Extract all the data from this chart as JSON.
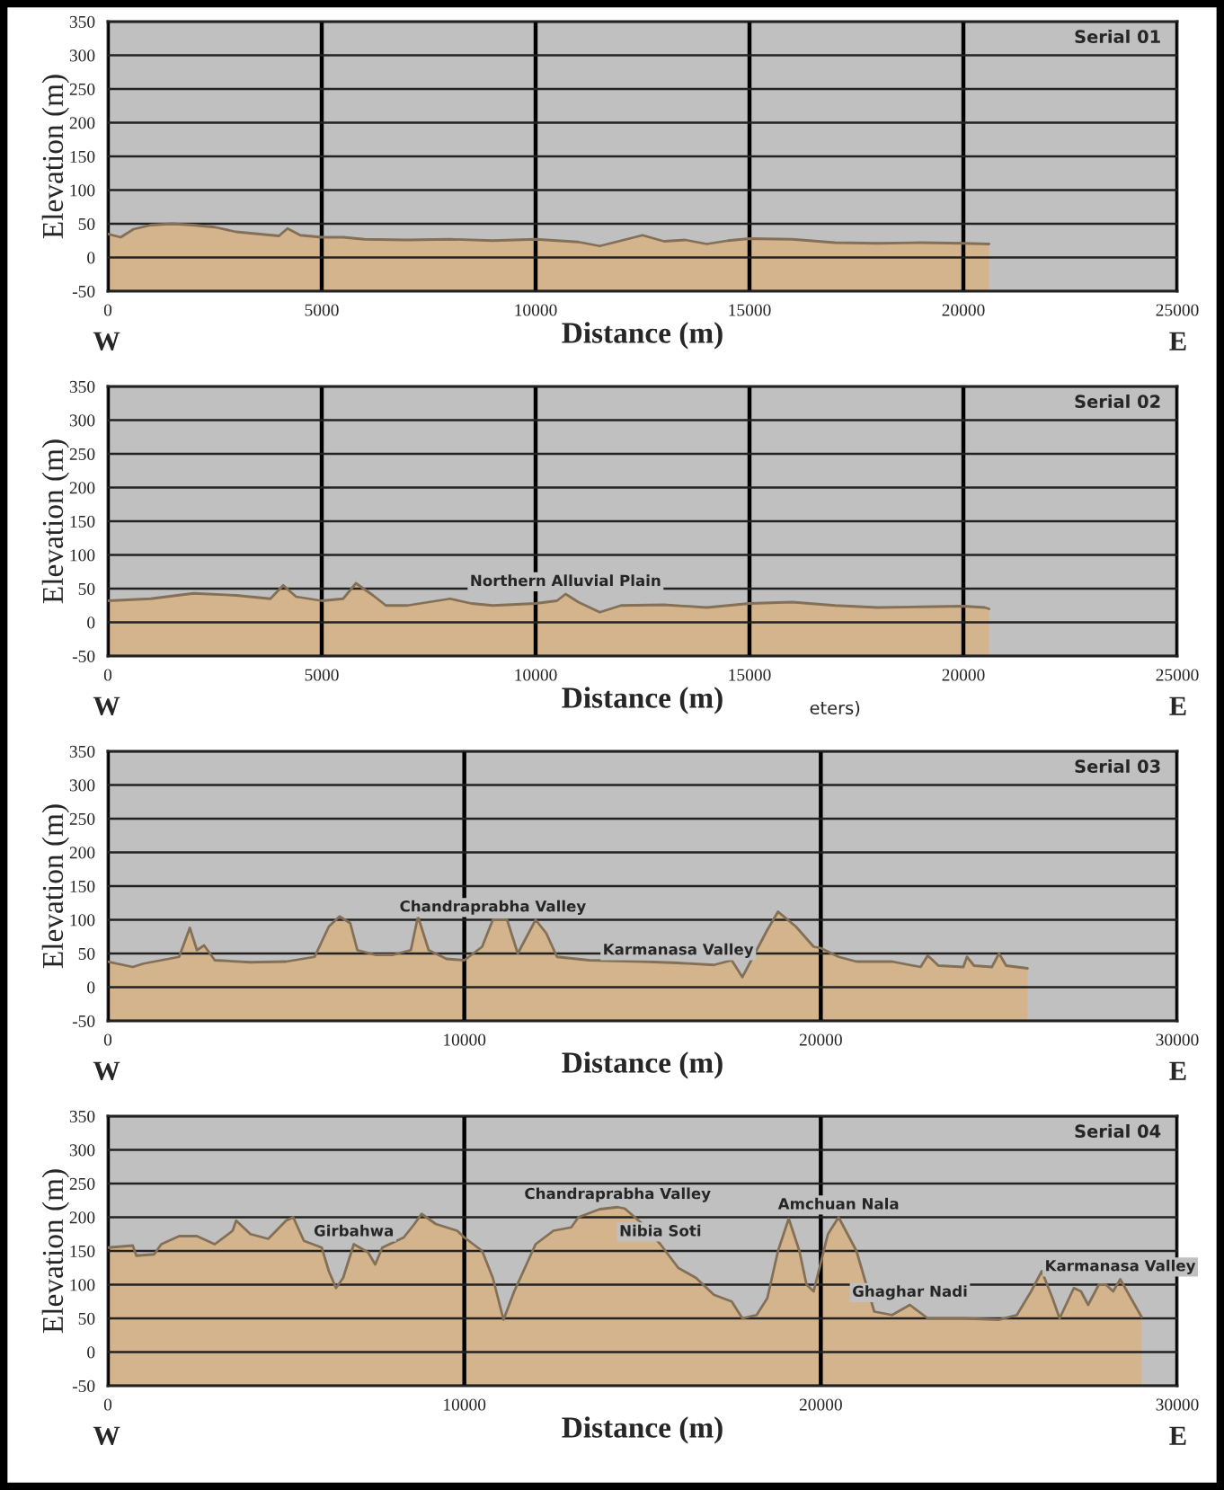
{
  "chart_data": [
    {
      "type": "area",
      "title": "Serial 01",
      "xlabel": "Distance (m)",
      "ylabel": "Elevation (m)",
      "xlim": [
        0,
        25000
      ],
      "ylim": [
        -50,
        350
      ],
      "xticks": [
        0,
        5000,
        10000,
        15000,
        20000,
        25000
      ],
      "yticks": [
        -50,
        0,
        50,
        100,
        150,
        200,
        250,
        300,
        350
      ],
      "grid": true,
      "legend": false,
      "annotations": [
        "W",
        "E"
      ],
      "series": [
        {
          "color": "#d4b48c",
          "x": [
            0,
            300,
            600,
            1000,
            1500,
            2000,
            2500,
            3000,
            3500,
            4000,
            4200,
            4500,
            5000,
            5500,
            6000,
            7000,
            8000,
            9000,
            10000,
            11000,
            11500,
            12000,
            12500,
            13000,
            13500,
            14000,
            14500,
            15000,
            16000,
            17000,
            18000,
            19000,
            20000,
            20600
          ],
          "values": [
            35,
            30,
            42,
            48,
            50,
            48,
            45,
            38,
            35,
            32,
            43,
            33,
            30,
            30,
            27,
            26,
            27,
            25,
            27,
            23,
            17,
            25,
            33,
            24,
            26,
            20,
            25,
            28,
            27,
            22,
            21,
            22,
            21,
            20
          ]
        }
      ]
    },
    {
      "type": "area",
      "title": "Serial 02",
      "xlabel": "Distance (m)",
      "ylabel": "Elevation (m)",
      "xlim": [
        0,
        25000
      ],
      "ylim": [
        -50,
        350
      ],
      "xticks": [
        0,
        5000,
        10000,
        15000,
        20000,
        25000
      ],
      "yticks": [
        -50,
        0,
        50,
        100,
        150,
        200,
        250,
        300,
        350
      ],
      "grid": true,
      "legend": false,
      "annotations": [
        "W",
        "E",
        "eters)",
        {
          "text": "Northern Alluvial Plain",
          "x": 10700,
          "y": 42
        }
      ],
      "series": [
        {
          "color": "#d4b48c",
          "x": [
            0,
            1000,
            2000,
            3000,
            3800,
            4100,
            4400,
            5000,
            5500,
            5800,
            6200,
            6500,
            7000,
            8000,
            8500,
            9000,
            10000,
            10500,
            10700,
            11000,
            11500,
            12000,
            13000,
            14000,
            15000,
            16000,
            17000,
            18000,
            19000,
            20000,
            20500,
            20600
          ],
          "values": [
            32,
            35,
            43,
            40,
            35,
            55,
            38,
            32,
            35,
            58,
            40,
            25,
            25,
            35,
            28,
            25,
            28,
            32,
            42,
            30,
            15,
            25,
            26,
            22,
            28,
            30,
            25,
            22,
            23,
            24,
            22,
            20
          ]
        }
      ]
    },
    {
      "type": "area",
      "title": "Serial 03",
      "xlabel": "Distance (m)",
      "ylabel": "Elevation (m)",
      "xlim": [
        0,
        30000
      ],
      "ylim": [
        -50,
        350
      ],
      "xticks": [
        0,
        10000,
        20000,
        30000
      ],
      "yticks": [
        -50,
        0,
        50,
        100,
        150,
        200,
        250,
        300,
        350
      ],
      "grid": true,
      "legend": false,
      "annotations": [
        "W",
        "E",
        {
          "text": "Chandraprabha Valley",
          "x": 10800,
          "y": 100
        },
        {
          "text": "Karmanasa Valley",
          "x": 16000,
          "y": 36
        }
      ],
      "series": [
        {
          "color": "#d4b48c",
          "x": [
            0,
            700,
            1000,
            2000,
            2300,
            2500,
            2700,
            3000,
            4000,
            5000,
            5800,
            6200,
            6500,
            6800,
            7000,
            7500,
            8000,
            8500,
            8700,
            9000,
            9500,
            10000,
            10500,
            10800,
            11200,
            11500,
            11800,
            12000,
            12300,
            12600,
            13500,
            15000,
            16000,
            17000,
            17500,
            17800,
            18000,
            18500,
            18800,
            19300,
            19800,
            20000,
            20500,
            21000,
            22000,
            22800,
            23000,
            23300,
            24000,
            24100,
            24300,
            24800,
            25000,
            25200,
            25800
          ],
          "values": [
            38,
            30,
            35,
            45,
            88,
            55,
            62,
            40,
            37,
            38,
            45,
            90,
            105,
            95,
            55,
            48,
            48,
            55,
            105,
            55,
            42,
            40,
            60,
            100,
            100,
            50,
            80,
            100,
            80,
            45,
            40,
            38,
            36,
            33,
            40,
            15,
            35,
            85,
            112,
            90,
            60,
            58,
            45,
            38,
            38,
            30,
            47,
            32,
            30,
            45,
            32,
            30,
            50,
            32,
            28
          ]
        }
      ]
    },
    {
      "type": "area",
      "title": "Serial 04",
      "xlabel": "Distance (m)",
      "ylabel": "Elevation (m)",
      "xlim": [
        0,
        30000
      ],
      "ylim": [
        -50,
        350
      ],
      "xticks": [
        0,
        10000,
        20000,
        30000
      ],
      "yticks": [
        -50,
        0,
        50,
        100,
        150,
        200,
        250,
        300,
        350
      ],
      "grid": true,
      "legend": false,
      "annotations": [
        "W",
        "E",
        {
          "text": "Girbahwa",
          "x": 6900,
          "y": 160
        },
        {
          "text": "Chandraprabha Valley",
          "x": 14300,
          "y": 215
        },
        {
          "text": "Nibia Soti",
          "x": 15500,
          "y": 160
        },
        {
          "text": "Amchuan Nala",
          "x": 20500,
          "y": 200
        },
        {
          "text": "Ghaghar Nadi",
          "x": 22500,
          "y": 70
        },
        {
          "text": "Karmanasa Valley",
          "x": 28400,
          "y": 108
        }
      ],
      "series": [
        {
          "color": "#d4b48c",
          "x": [
            0,
            700,
            800,
            1300,
            1500,
            2000,
            2500,
            3000,
            3500,
            3600,
            4000,
            4500,
            5000,
            5200,
            5500,
            6000,
            6200,
            6400,
            6600,
            6900,
            7300,
            7500,
            7700,
            8300,
            8600,
            8800,
            9200,
            9800,
            10000,
            10500,
            10800,
            11100,
            11400,
            12000,
            12500,
            13000,
            13200,
            13800,
            14300,
            14500,
            15000,
            15500,
            16000,
            16500,
            17000,
            17500,
            17800,
            18200,
            18500,
            18800,
            19100,
            19400,
            19600,
            19800,
            20200,
            20500,
            20800,
            21000,
            21500,
            22000,
            22500,
            23000,
            24000,
            25000,
            25500,
            25900,
            26200,
            26500,
            26700,
            27100,
            27300,
            27500,
            27800,
            28000,
            28200,
            28400,
            28700,
            29000
          ],
          "values": [
            155,
            158,
            143,
            145,
            160,
            172,
            172,
            160,
            180,
            195,
            175,
            168,
            195,
            200,
            165,
            155,
            120,
            95,
            110,
            160,
            148,
            130,
            155,
            170,
            190,
            205,
            190,
            180,
            170,
            150,
            110,
            48,
            90,
            160,
            180,
            185,
            200,
            212,
            215,
            213,
            190,
            160,
            125,
            110,
            85,
            75,
            50,
            55,
            80,
            150,
            198,
            150,
            100,
            90,
            175,
            200,
            170,
            150,
            60,
            55,
            70,
            50,
            50,
            48,
            55,
            90,
            120,
            80,
            50,
            95,
            90,
            70,
            100,
            100,
            90,
            108,
            80,
            52
          ]
        }
      ]
    }
  ]
}
